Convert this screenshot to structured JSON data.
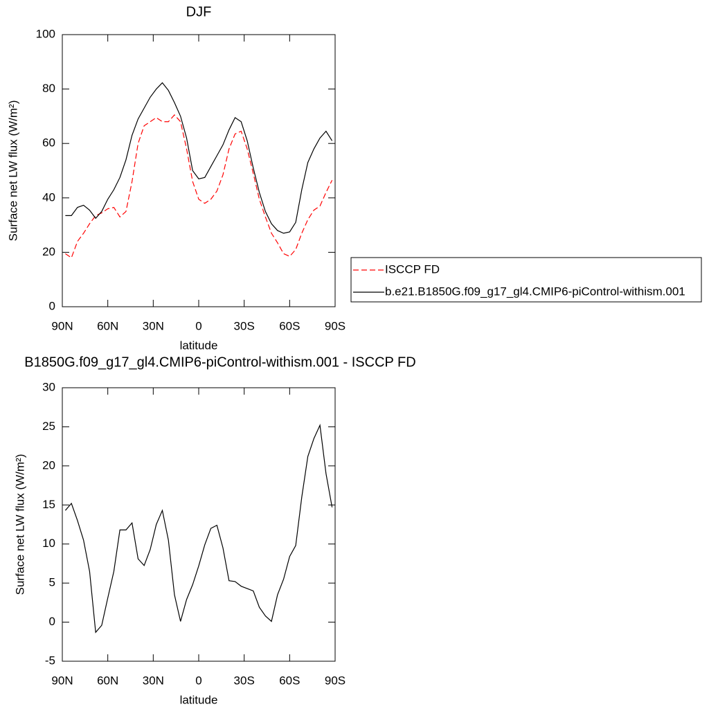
{
  "chart_data": [
    {
      "type": "line",
      "title": "DJF",
      "xlabel": "latitude",
      "ylabel": "Surface net LW flux (W/m²)",
      "x": [
        88,
        84,
        80,
        76,
        72,
        68,
        64,
        60,
        56,
        52,
        48,
        44,
        40,
        36,
        32,
        28,
        24,
        20,
        16,
        12,
        8,
        4,
        0,
        -4,
        -8,
        -12,
        -16,
        -20,
        -24,
        -28,
        -32,
        -36,
        -40,
        -44,
        -48,
        -52,
        -56,
        -60,
        -64,
        -68,
        -72,
        -76,
        -80,
        -84,
        -88
      ],
      "series": [
        {
          "name": "ISCCP FD",
          "color": "#ff0000",
          "dash": true,
          "values": [
            19.5,
            18,
            24,
            27,
            30.5,
            33.5,
            34.5,
            36,
            36.5,
            33,
            35,
            46,
            60,
            66.5,
            68,
            69.5,
            68,
            68,
            70.5,
            68,
            58,
            46,
            39.5,
            38,
            39.5,
            42.5,
            48.5,
            58,
            63.5,
            64.5,
            58,
            49,
            39.5,
            33,
            27,
            23.5,
            19.5,
            18.5,
            21,
            27,
            32,
            35.5,
            37,
            42,
            46.5
          ]
        },
        {
          "name": "b.e21.B1850G.f09_g17_gl4.CMIP6-piControl-withism.001",
          "color": "#000000",
          "dash": false,
          "values": [
            33.5,
            33.5,
            36.5,
            37.3,
            35.5,
            32.5,
            35,
            39.5,
            43,
            47.5,
            54,
            63,
            69,
            73,
            77,
            80,
            82.3,
            79.5,
            75,
            70,
            62,
            50,
            47,
            47.5,
            51.5,
            55.5,
            59.5,
            65,
            69.5,
            68,
            61,
            51,
            42,
            35,
            30.5,
            28,
            27,
            27.5,
            31,
            43,
            53,
            58,
            62,
            64.5,
            61
          ]
        }
      ],
      "xlim": [
        90,
        -90
      ],
      "xticks": [
        {
          "value": 90,
          "label": "90N"
        },
        {
          "value": 60,
          "label": "60N"
        },
        {
          "value": 30,
          "label": "30N"
        },
        0,
        {
          "value": -30,
          "label": "30S"
        },
        {
          "value": -60,
          "label": "60S"
        },
        {
          "value": -90,
          "label": "90S"
        }
      ],
      "ylim": [
        0,
        100
      ],
      "yticks": [
        0,
        20,
        40,
        60,
        80,
        100
      ],
      "grid": false,
      "legend": "right"
    },
    {
      "type": "line",
      "title": "B1850G.f09_g17_gl4.CMIP6-piControl-withism.001 - ISCCP FD",
      "xlabel": "latitude",
      "ylabel": "Surface net LW flux (W/m²)",
      "x": [
        88,
        84,
        80,
        76,
        72,
        68,
        64,
        60,
        56,
        52,
        48,
        44,
        40,
        36,
        32,
        28,
        24,
        20,
        16,
        12,
        8,
        4,
        0,
        -4,
        -8,
        -12,
        -16,
        -20,
        -24,
        -28,
        -32,
        -36,
        -40,
        -44,
        -48,
        -52,
        -56,
        -60,
        -64,
        -68,
        -72,
        -76,
        -80,
        -84,
        -88
      ],
      "series": [
        {
          "color": "#000000",
          "dash": false,
          "values": [
            14.3,
            15.2,
            13,
            10.5,
            6.5,
            -1.3,
            -0.4,
            3.1,
            6.5,
            11.8,
            11.8,
            12.7,
            8.1,
            7.25,
            9.3,
            12.5,
            14.3,
            10.5,
            3.5,
            0.1,
            2.9,
            4.8,
            7.2,
            9.9,
            12,
            12.4,
            9.5,
            5.3,
            5.2,
            4.6,
            4.3,
            4,
            1.9,
            0.8,
            0.1,
            3.5,
            5.5,
            8.4,
            9.8,
            16,
            21.2,
            23.5,
            25.2,
            19,
            14.7
          ]
        }
      ],
      "xlim": [
        90,
        -90
      ],
      "xticks": [
        {
          "value": 90,
          "label": "90N"
        },
        {
          "value": 60,
          "label": "60N"
        },
        {
          "value": 30,
          "label": "30N"
        },
        0,
        {
          "value": -30,
          "label": "30S"
        },
        {
          "value": -60,
          "label": "60S"
        },
        {
          "value": -90,
          "label": "90S"
        }
      ],
      "ylim": [
        -5,
        30
      ],
      "yticks": [
        -5,
        0,
        5,
        10,
        15,
        20,
        25,
        30
      ],
      "grid": false
    }
  ]
}
